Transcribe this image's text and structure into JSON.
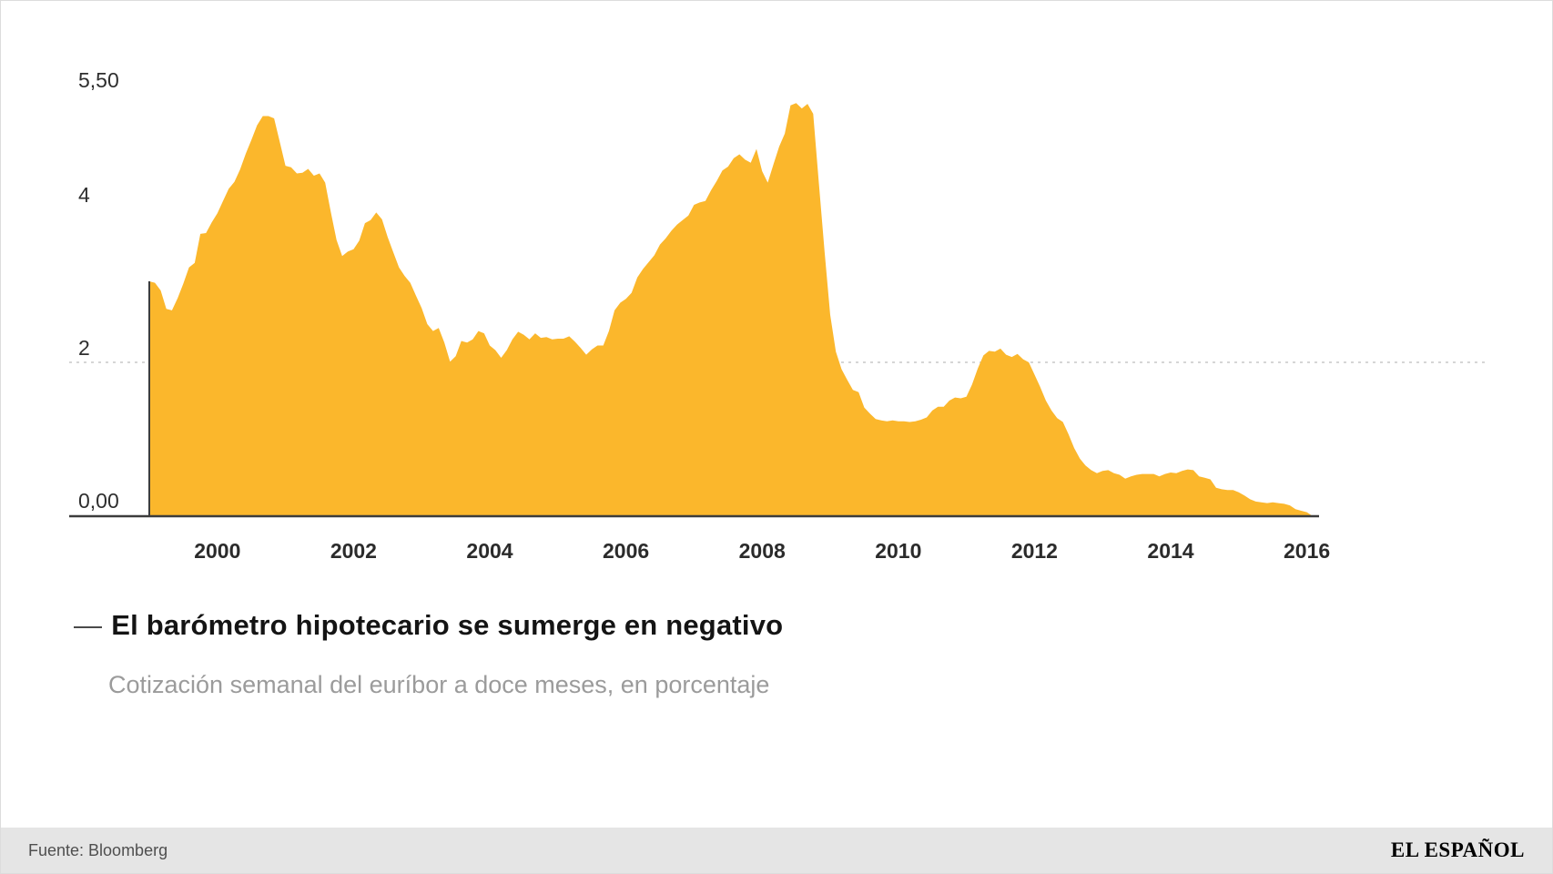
{
  "chart_data": {
    "type": "area",
    "title": "El barómetro hipotecario se sumerge en negativo",
    "subtitle": "Cotización semanal del euríbor a doce meses, en porcentaje",
    "series_name": "Euríbor a 12 meses (%)",
    "x_start_year": 1999,
    "points_per_year": 12,
    "x_end": 2016.17,
    "ylim": [
      -0.1,
      5.6
    ],
    "grid_on": true,
    "grid_line_value": 2,
    "area_color": "#FBB72C",
    "axis_color": "#3c3c3c",
    "grid_color": "#c9c9c9",
    "y_ticks": [
      {
        "value": 5.5,
        "label": "5,50"
      },
      {
        "value": 4,
        "label": "4"
      },
      {
        "value": 2,
        "label": "2"
      },
      {
        "value": 0,
        "label": "0,00"
      }
    ],
    "x_ticks": [
      2000,
      2002,
      2004,
      2006,
      2008,
      2010,
      2012,
      2014,
      2016
    ],
    "values": [
      3.06,
      3.04,
      2.94,
      2.7,
      2.68,
      2.84,
      3.03,
      3.24,
      3.3,
      3.68,
      3.69,
      3.83,
      3.95,
      4.11,
      4.27,
      4.36,
      4.52,
      4.73,
      4.91,
      5.1,
      5.22,
      5.22,
      5.19,
      4.88,
      4.57,
      4.55,
      4.47,
      4.48,
      4.53,
      4.44,
      4.47,
      4.35,
      3.96,
      3.6,
      3.39,
      3.45,
      3.48,
      3.59,
      3.82,
      3.86,
      3.96,
      3.87,
      3.64,
      3.44,
      3.24,
      3.13,
      3.04,
      2.87,
      2.71,
      2.5,
      2.41,
      2.45,
      2.26,
      2.01,
      2.08,
      2.28,
      2.26,
      2.3,
      2.41,
      2.38,
      2.22,
      2.16,
      2.06,
      2.16,
      2.3,
      2.4,
      2.36,
      2.3,
      2.38,
      2.32,
      2.33,
      2.3,
      2.31,
      2.31,
      2.34,
      2.27,
      2.19,
      2.1,
      2.17,
      2.22,
      2.22,
      2.41,
      2.68,
      2.78,
      2.83,
      2.91,
      3.11,
      3.22,
      3.31,
      3.4,
      3.54,
      3.62,
      3.72,
      3.8,
      3.86,
      3.92,
      4.06,
      4.09,
      4.11,
      4.25,
      4.37,
      4.51,
      4.56,
      4.67,
      4.72,
      4.65,
      4.61,
      4.79,
      4.5,
      4.35,
      4.59,
      4.82,
      4.99,
      5.36,
      5.39,
      5.32,
      5.38,
      5.25,
      4.35,
      3.45,
      2.62,
      2.14,
      1.91,
      1.77,
      1.64,
      1.61,
      1.41,
      1.33,
      1.26,
      1.24,
      1.23,
      1.24,
      1.23,
      1.23,
      1.22,
      1.23,
      1.25,
      1.28,
      1.37,
      1.42,
      1.42,
      1.5,
      1.54,
      1.53,
      1.55,
      1.71,
      1.92,
      2.09,
      2.15,
      2.14,
      2.18,
      2.1,
      2.07,
      2.11,
      2.04,
      2.0,
      1.84,
      1.68,
      1.5,
      1.37,
      1.27,
      1.22,
      1.06,
      0.88,
      0.74,
      0.65,
      0.59,
      0.55,
      0.58,
      0.59,
      0.55,
      0.53,
      0.48,
      0.51,
      0.53,
      0.54,
      0.54,
      0.54,
      0.51,
      0.54,
      0.56,
      0.55,
      0.58,
      0.6,
      0.59,
      0.51,
      0.49,
      0.47,
      0.36,
      0.34,
      0.33,
      0.33,
      0.3,
      0.26,
      0.21,
      0.18,
      0.17,
      0.16,
      0.17,
      0.16,
      0.15,
      0.13,
      0.08,
      0.06,
      0.04,
      -0.01,
      -0.02
    ]
  },
  "title": {
    "dash": "—",
    "text": "El barómetro hipotecario se sumerge en negativo"
  },
  "subtitle": "Cotización semanal del euríbor a doce meses, en porcentaje",
  "footer": {
    "source": "Fuente: Bloomberg",
    "brand": "EL ESPAÑOL"
  }
}
